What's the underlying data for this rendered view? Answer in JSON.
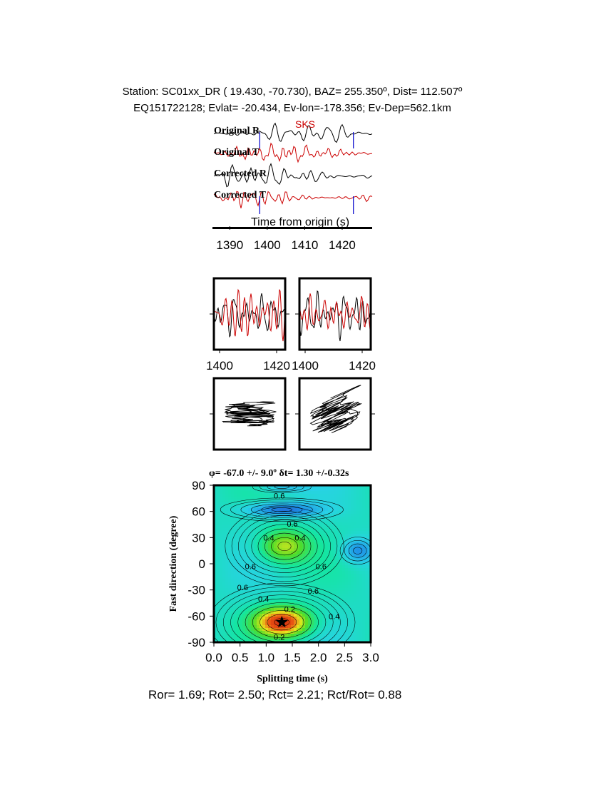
{
  "header": {
    "line1": "Station: SC01xx_DR (  19.430,  -70.730), BAZ=  255.350º, Dist=  112.507º",
    "line2": "EQ151722128; Evlat= -20.434, Ev-lon=-178.356; Ev-Dep=562.1km"
  },
  "footer": {
    "text": "Ror= 1.69; Rot= 2.50; Rct= 2.21; Rct/Rot= 0.88"
  },
  "colors": {
    "black": "#000000",
    "red": "#cc0000",
    "blue": "#0000cc"
  },
  "chart_data": [
    {
      "id": "waveforms",
      "type": "line",
      "trace_labels": [
        "Original R",
        "Original T",
        "Corrected R",
        "Corrected T"
      ],
      "phase_label": "SKS",
      "xlabel": "Time from origin (s)",
      "x_ticks": [
        1390,
        1400,
        1410,
        1420
      ],
      "xlim": [
        1385,
        1428
      ],
      "window": [
        1398,
        1423
      ],
      "phase_time": 1406
    },
    {
      "id": "particle-waveforms",
      "type": "line",
      "panels": [
        {
          "x_ticks": [
            1400,
            1420
          ],
          "xlim": [
            1398,
            1423
          ]
        },
        {
          "x_ticks": [
            1400,
            1420
          ],
          "xlim": [
            1398,
            1423
          ]
        }
      ]
    },
    {
      "id": "particle-motion",
      "type": "line",
      "panels": [
        "original",
        "corrected"
      ]
    },
    {
      "id": "energy-grid",
      "type": "heatmap",
      "title": "φ= -67.0 +/- 9.0º δt= 1.30 +/-0.32s",
      "xlabel": "Splitting time (s)",
      "ylabel": "Fast direction (degree)",
      "x_ticks": [
        "0.0",
        "0.5",
        "1.0",
        "1.5",
        "2.0",
        "2.5",
        "3.0"
      ],
      "y_ticks": [
        "90",
        "60",
        "30",
        "0",
        "-30",
        "-60",
        "-90"
      ],
      "xlim": [
        0,
        3
      ],
      "ylim": [
        -90,
        90
      ],
      "best": {
        "phi": -67.0,
        "dt": 1.3
      },
      "contour_labels": [
        {
          "text": "0.6",
          "x": 1.25,
          "y": 78
        },
        {
          "text": "0.6",
          "x": 1.5,
          "y": 46
        },
        {
          "text": "0.4",
          "x": 1.05,
          "y": 30
        },
        {
          "text": "0.4",
          "x": 1.65,
          "y": 30
        },
        {
          "text": "0.6",
          "x": 0.7,
          "y": -3
        },
        {
          "text": "0.6",
          "x": 2.05,
          "y": -3
        },
        {
          "text": "0.6",
          "x": 0.55,
          "y": -27
        },
        {
          "text": "0.6",
          "x": 1.9,
          "y": -31
        },
        {
          "text": "0.4",
          "x": 0.95,
          "y": -40
        },
        {
          "text": "0.2",
          "x": 1.45,
          "y": -52
        },
        {
          "text": "0.4",
          "x": 2.3,
          "y": -60
        },
        {
          "text": "0.2",
          "x": 1.25,
          "y": -84
        }
      ]
    }
  ]
}
